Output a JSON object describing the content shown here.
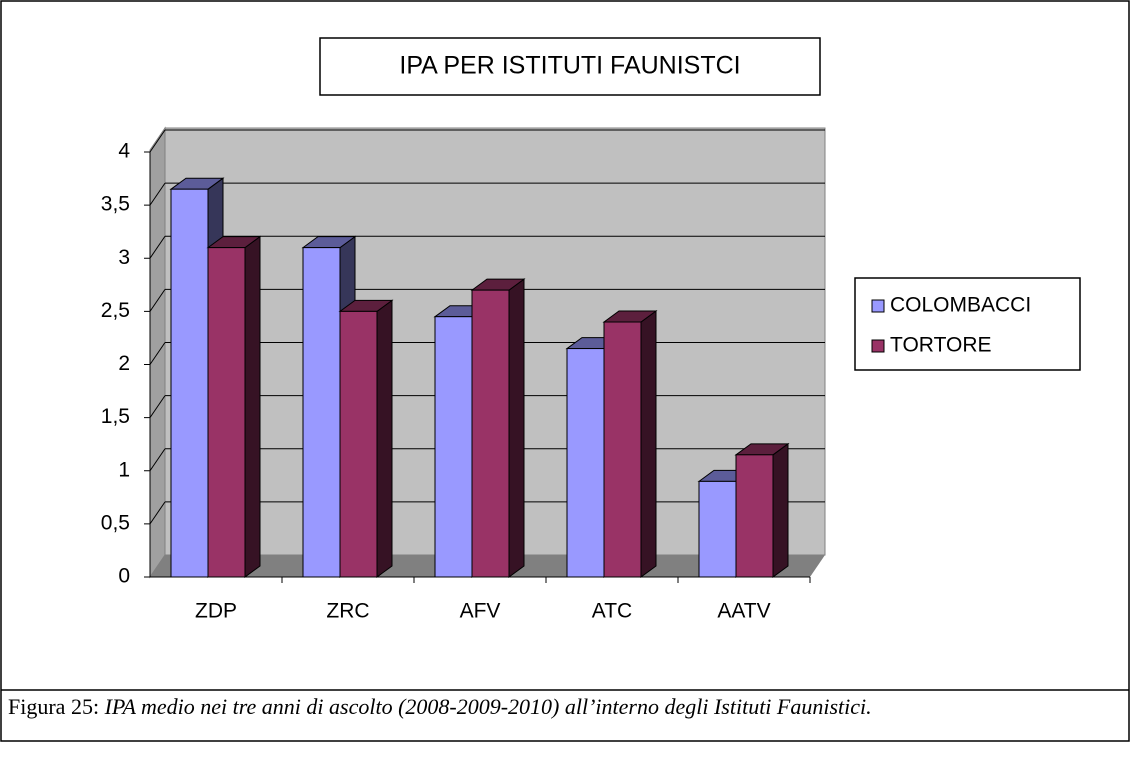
{
  "chart_data": {
    "type": "bar",
    "title": "IPA PER ISTITUTI FAUNISTCI",
    "categories": [
      "ZDP",
      "ZRC",
      "AFV",
      "ATC",
      "AATV"
    ],
    "series": [
      {
        "name": "COLOMBACCI",
        "color": "#9999ff",
        "values": [
          3.65,
          3.1,
          2.45,
          2.15,
          0.9
        ]
      },
      {
        "name": "TORTORE",
        "color": "#993366",
        "values": [
          3.1,
          2.5,
          2.7,
          2.4,
          1.15
        ]
      }
    ],
    "ylim": [
      0,
      4
    ],
    "yticks": [
      0,
      {
        "value": 0.5,
        "label": "0,5"
      },
      1,
      {
        "value": 1.5,
        "label": "1,5"
      },
      2,
      {
        "value": 2.5,
        "label": "2,5"
      },
      3,
      {
        "value": 3.5,
        "label": "3,5"
      },
      4
    ],
    "grid": true,
    "legend": "right"
  },
  "caption": {
    "label": "Figura 25:",
    "text": "IPA medio nei tre anni di ascolto (2008-2009-2010) all’interno degli Istituti Faunistici."
  }
}
